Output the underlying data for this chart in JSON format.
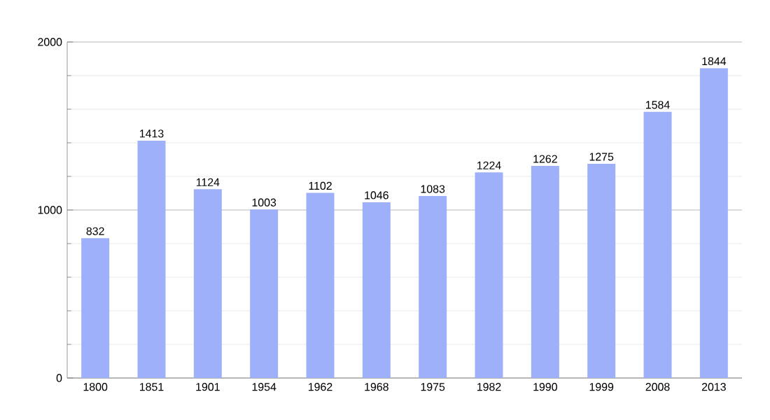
{
  "chart_data": {
    "type": "bar",
    "categories": [
      "1800",
      "1851",
      "1901",
      "1954",
      "1962",
      "1968",
      "1975",
      "1982",
      "1990",
      "1999",
      "2008",
      "2013"
    ],
    "values": [
      832,
      1413,
      1124,
      1003,
      1102,
      1046,
      1083,
      1224,
      1262,
      1275,
      1584,
      1844
    ],
    "color": "#9fb0fa",
    "ylim": [
      0,
      2000
    ],
    "yticks": [
      0,
      1000,
      2000
    ],
    "grid": "y",
    "data_labels": true
  }
}
